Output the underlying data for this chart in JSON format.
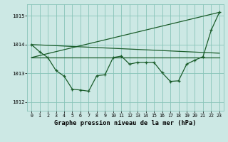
{
  "xlabel": "Graphe pression niveau de la mer (hPa)",
  "xlim": [
    -0.5,
    23.5
  ],
  "ylim": [
    1011.7,
    1015.4
  ],
  "yticks": [
    1012,
    1013,
    1014,
    1015
  ],
  "xticks": [
    0,
    1,
    2,
    3,
    4,
    5,
    6,
    7,
    8,
    9,
    10,
    11,
    12,
    13,
    14,
    15,
    16,
    17,
    18,
    19,
    20,
    21,
    22,
    23
  ],
  "background_color": "#cce8e4",
  "grid_color": "#88c4b8",
  "line_color": "#1a5c2a",
  "line1_x": [
    0,
    1,
    2,
    3,
    4,
    5,
    6,
    7,
    8,
    9,
    10,
    11,
    12,
    13,
    14,
    15,
    16,
    17,
    18,
    19,
    20,
    21,
    22,
    23
  ],
  "line1_y": [
    1014.0,
    1013.75,
    1013.55,
    1013.1,
    1012.9,
    1012.45,
    1012.42,
    1012.38,
    1012.92,
    1012.95,
    1013.55,
    1013.6,
    1013.32,
    1013.38,
    1013.38,
    1013.38,
    1013.02,
    1012.72,
    1012.74,
    1013.32,
    1013.46,
    1013.58,
    1014.5,
    1015.12
  ],
  "line2_x": [
    0,
    23
  ],
  "line2_y": [
    1013.55,
    1013.55
  ],
  "line3_x": [
    0,
    23
  ],
  "line3_y": [
    1014.0,
    1013.7
  ],
  "line4_x": [
    0,
    23
  ],
  "line4_y": [
    1013.55,
    1015.12
  ]
}
